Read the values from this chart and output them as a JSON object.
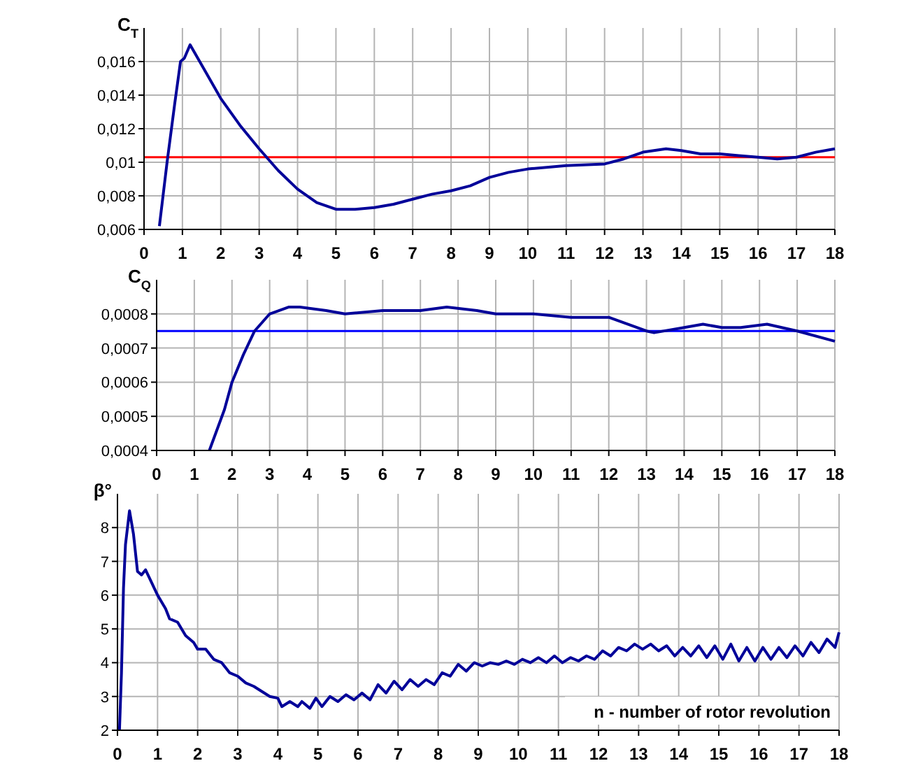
{
  "chart_data": [
    {
      "type": "line",
      "ylabel": "C$_{T}$",
      "xlim": [
        0,
        18
      ],
      "xticks": [
        0,
        1,
        2,
        3,
        4,
        5,
        6,
        7,
        8,
        9,
        10,
        11,
        12,
        13,
        14,
        15,
        16,
        17,
        18
      ],
      "ylim": [
        0.006,
        0.018
      ],
      "yticks": [
        {
          "value": 0.006,
          "label": "0,006"
        },
        {
          "value": 0.008,
          "label": "0,008"
        },
        {
          "value": 0.01,
          "label": "0,01"
        },
        {
          "value": 0.012,
          "label": "0,012"
        },
        {
          "value": 0.014,
          "label": "0,014"
        },
        {
          "value": 0.016,
          "label": "0,016"
        }
      ],
      "grid": true,
      "series": [
        {
          "color": "#000099",
          "x": [
            0.4,
            0.6,
            0.8,
            0.95,
            1.05,
            1.2,
            1.5,
            2,
            2.5,
            3,
            3.5,
            4,
            4.5,
            5,
            5.5,
            6,
            6.5,
            7,
            7.5,
            8,
            8.5,
            9,
            9.5,
            10,
            11,
            12,
            12.5,
            13,
            13.6,
            14,
            14.5,
            15,
            15.5,
            16,
            16.5,
            17,
            17.5,
            18
          ],
          "values": [
            0.0062,
            0.01,
            0.0135,
            0.016,
            0.0162,
            0.017,
            0.0158,
            0.0138,
            0.0122,
            0.0108,
            0.0095,
            0.0084,
            0.0076,
            0.0072,
            0.0072,
            0.0073,
            0.0075,
            0.0078,
            0.0081,
            0.0083,
            0.0086,
            0.0091,
            0.0094,
            0.0096,
            0.0098,
            0.0099,
            0.0102,
            0.0106,
            0.0108,
            0.0107,
            0.0105,
            0.0105,
            0.0104,
            0.0103,
            0.0102,
            0.0103,
            0.0106,
            0.0108
          ]
        }
      ],
      "ref_lines": [
        {
          "axis": "y",
          "value": 0.0103,
          "color": "#ff0000"
        }
      ]
    },
    {
      "type": "line",
      "ylabel": "C$_{Q}$",
      "xlim": [
        0,
        18
      ],
      "xticks": [
        0,
        1,
        2,
        3,
        4,
        5,
        6,
        7,
        8,
        9,
        10,
        11,
        12,
        13,
        14,
        15,
        16,
        17,
        18
      ],
      "ylim": [
        0.0004,
        0.0009
      ],
      "yticks": [
        {
          "value": 0.0004,
          "label": "0,0004"
        },
        {
          "value": 0.0005,
          "label": "0,0005"
        },
        {
          "value": 0.0006,
          "label": "0,0006"
        },
        {
          "value": 0.0007,
          "label": "0,0007"
        },
        {
          "value": 0.0008,
          "label": "0,0008"
        }
      ],
      "grid": true,
      "series": [
        {
          "color": "#000099",
          "x": [
            1.4,
            1.8,
            2,
            2.3,
            2.6,
            3,
            3.5,
            3.8,
            4.5,
            5,
            6,
            7,
            7.7,
            8.5,
            9,
            10,
            11,
            12,
            12.5,
            13,
            13.2,
            14,
            14.5,
            15,
            15.5,
            16.2,
            17,
            18
          ],
          "values": [
            0.0004,
            0.00052,
            0.0006,
            0.00068,
            0.00075,
            0.0008,
            0.00082,
            0.00082,
            0.00081,
            0.0008,
            0.00081,
            0.00081,
            0.00082,
            0.00081,
            0.0008,
            0.0008,
            0.00079,
            0.00079,
            0.00077,
            0.00075,
            0.000745,
            0.00076,
            0.00077,
            0.00076,
            0.00076,
            0.00077,
            0.00075,
            0.00072
          ]
        }
      ],
      "ref_lines": [
        {
          "axis": "y",
          "value": 0.00075,
          "color": "#0000ff"
        }
      ]
    },
    {
      "type": "line",
      "ylabel": "β°",
      "xlabel": "n - number of rotor revolution",
      "xlim": [
        0,
        18
      ],
      "xticks": [
        0,
        1,
        2,
        3,
        4,
        5,
        6,
        7,
        8,
        9,
        10,
        11,
        12,
        13,
        14,
        15,
        16,
        17,
        18
      ],
      "ylim": [
        2,
        9
      ],
      "yticks": [
        2,
        3,
        4,
        5,
        6,
        7,
        8
      ],
      "grid": true,
      "series": [
        {
          "color": "#000099",
          "x": [
            0.05,
            0.1,
            0.15,
            0.2,
            0.3,
            0.4,
            0.5,
            0.6,
            0.7,
            0.8,
            1,
            1.2,
            1.3,
            1.5,
            1.7,
            1.9,
            2,
            2.2,
            2.4,
            2.6,
            2.8,
            3,
            3.2,
            3.4,
            3.6,
            3.8,
            4,
            4.1,
            4.3,
            4.5,
            4.6,
            4.8,
            4.95,
            5.1,
            5.3,
            5.5,
            5.7,
            5.9,
            6.1,
            6.3,
            6.5,
            6.7,
            6.9,
            7.1,
            7.3,
            7.5,
            7.7,
            7.9,
            8.1,
            8.3,
            8.5,
            8.7,
            8.9,
            9.1,
            9.3,
            9.5,
            9.7,
            9.9,
            10.1,
            10.3,
            10.5,
            10.7,
            10.9,
            11.1,
            11.3,
            11.5,
            11.7,
            11.9,
            12.1,
            12.3,
            12.5,
            12.7,
            12.9,
            13.1,
            13.3,
            13.5,
            13.7,
            13.9,
            14.1,
            14.3,
            14.5,
            14.7,
            14.9,
            15.1,
            15.3,
            15.5,
            15.7,
            15.9,
            16.1,
            16.3,
            16.5,
            16.7,
            16.9,
            17.1,
            17.3,
            17.5,
            17.7,
            17.9,
            18
          ],
          "values": [
            2,
            3.7,
            6.2,
            7.5,
            8.5,
            7.8,
            6.7,
            6.6,
            6.75,
            6.5,
            6,
            5.6,
            5.3,
            5.2,
            4.8,
            4.6,
            4.4,
            4.4,
            4.1,
            4.0,
            3.7,
            3.6,
            3.4,
            3.3,
            3.15,
            3.0,
            2.95,
            2.7,
            2.85,
            2.7,
            2.85,
            2.65,
            2.95,
            2.7,
            3.0,
            2.85,
            3.05,
            2.9,
            3.1,
            2.9,
            3.35,
            3.1,
            3.45,
            3.2,
            3.5,
            3.3,
            3.5,
            3.35,
            3.7,
            3.6,
            3.95,
            3.75,
            4.0,
            3.9,
            4.0,
            3.95,
            4.05,
            3.95,
            4.1,
            4.0,
            4.15,
            4.0,
            4.2,
            4.0,
            4.15,
            4.05,
            4.2,
            4.1,
            4.35,
            4.2,
            4.45,
            4.35,
            4.55,
            4.4,
            4.55,
            4.35,
            4.5,
            4.2,
            4.45,
            4.2,
            4.5,
            4.15,
            4.5,
            4.1,
            4.55,
            4.05,
            4.45,
            4.05,
            4.45,
            4.1,
            4.45,
            4.15,
            4.5,
            4.2,
            4.6,
            4.3,
            4.7,
            4.45,
            4.9
          ]
        }
      ]
    }
  ]
}
